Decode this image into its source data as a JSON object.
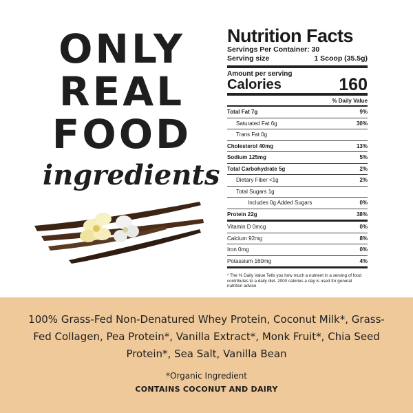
{
  "headline": {
    "line1": "ONLY",
    "line2": "REAL",
    "line3": "FOOD",
    "script": "ingredients"
  },
  "image": {
    "subject": "vanilla-beans-and-flowers"
  },
  "nutrition": {
    "title": "Nutrition Facts",
    "servings_label": "Servings Per Container: 30",
    "serving_size_label": "Serving size",
    "serving_size_value": "1 Scoop (35.5g)",
    "amount_label": "Amount per serving",
    "calories_label": "Calories",
    "calories_value": "160",
    "dv_header": "% Daily Value",
    "rows": [
      {
        "label": "Total Fat 7g",
        "dv": "9%"
      },
      {
        "label": "Saturated Fat 6g",
        "dv": "30%"
      },
      {
        "label": "Trans Fat 0g",
        "dv": ""
      },
      {
        "label": "Cholesterol 40mg",
        "dv": "13%"
      },
      {
        "label": "Sodium 125mg",
        "dv": "5%"
      },
      {
        "label": "Total Carbohydrate 5g",
        "dv": "2%"
      },
      {
        "label": "Dietary Fiber <1g",
        "dv": "2%"
      },
      {
        "label": "Total Sugars  1g",
        "dv": ""
      },
      {
        "label": "Includes 0g Added Sugars",
        "dv": "0%"
      },
      {
        "label": "Protein 22g",
        "dv": "38%"
      }
    ],
    "minerals": [
      {
        "label": "Vitamin D 0mcg",
        "dv": "0%"
      },
      {
        "label": "Calcium 92mg",
        "dv": "8%"
      },
      {
        "label": "Iron 0mg",
        "dv": "0%"
      },
      {
        "label": "Potassium 160mg",
        "dv": "4%"
      }
    ],
    "footnote": "* The % Daily Value Tells you how much a nutrient in a serving of food contributes to a daily diet. 2000 calories a day is used for general nutrition advice"
  },
  "ingredients": {
    "list": "100% Grass-Fed Non-Denatured Whey Protein, Coconut Milk*, Grass-Fed Collagen, Pea Protein*, Vanilla Extract*, Monk Fruit*, Chia Seed Protein*, Sea Salt, Vanilla Bean",
    "organic_note": "*Organic Ingredient",
    "allergen": "CONTAINS COCONUT AND DAIRY"
  },
  "colors": {
    "band": "#efc99a",
    "text": "#1e1e1e"
  }
}
